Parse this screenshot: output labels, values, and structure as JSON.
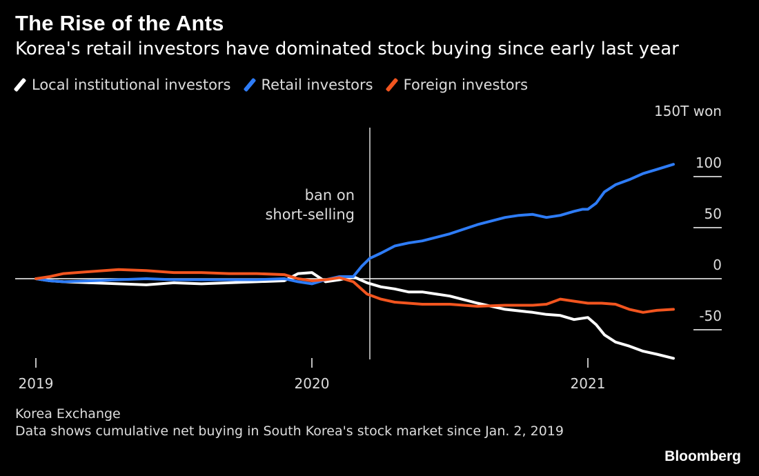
{
  "title": "The Rise of the Ants",
  "subtitle": "Korea's retail investors have dominated stock buying since early last year",
  "source": "Korea Exchange",
  "note": "Data shows cumulative net buying in South Korea's stock market since Jan. 2, 2019",
  "brand": "Bloomberg",
  "colors": {
    "background": "#000000",
    "institutional": "#ffffff",
    "retail": "#2e7cf6",
    "foreign": "#f2551f",
    "axis": "#ffffff",
    "annotation_line": "#ffffff"
  },
  "chart_data": {
    "type": "line",
    "title": "The Rise of the Ants",
    "subtitle": "Korea's retail investors have dominated stock buying since early last year",
    "ylabel_unit": "150T won",
    "ylim": [
      -80,
      150
    ],
    "yticks": [
      {
        "value": 150,
        "label": "150T won"
      },
      {
        "value": 100,
        "label": "100"
      },
      {
        "value": 50,
        "label": "50"
      },
      {
        "value": 0,
        "label": "0"
      },
      {
        "value": -50,
        "label": "-50"
      }
    ],
    "x_range": [
      2019.0,
      2021.5
    ],
    "xticks": [
      {
        "value": 2019.0,
        "label": "2019"
      },
      {
        "value": 2020.0,
        "label": "2020"
      },
      {
        "value": 2021.0,
        "label": "2021"
      }
    ],
    "legend_position": "top-left",
    "grid": false,
    "annotation": {
      "x": 2020.21,
      "label_lines": [
        "ban on",
        "short-selling"
      ]
    },
    "series": [
      {
        "name": "Local institutional investors",
        "color": "#ffffff",
        "x": [
          2019.0,
          2019.05,
          2019.1,
          2019.2,
          2019.3,
          2019.4,
          2019.5,
          2019.6,
          2019.7,
          2019.8,
          2019.9,
          2019.95,
          2020.0,
          2020.05,
          2020.1,
          2020.15,
          2020.2,
          2020.25,
          2020.3,
          2020.35,
          2020.4,
          2020.5,
          2020.6,
          2020.7,
          2020.8,
          2020.85,
          2020.9,
          2020.95,
          2021.0,
          2021.03,
          2021.06,
          2021.1,
          2021.15,
          2021.2,
          2021.25,
          2021.31
        ],
        "y": [
          0,
          -2,
          -3,
          -4,
          -5,
          -6,
          -4,
          -5,
          -4,
          -3,
          -2,
          5,
          6,
          -3,
          -1,
          2,
          -4,
          -8,
          -10,
          -13,
          -13,
          -17,
          -24,
          -30,
          -33,
          -35,
          -36,
          -40,
          -38,
          -45,
          -55,
          -62,
          -66,
          -71,
          -74,
          -78
        ]
      },
      {
        "name": "Retail investors",
        "color": "#2e7cf6",
        "x": [
          2019.0,
          2019.05,
          2019.1,
          2019.2,
          2019.3,
          2019.4,
          2019.5,
          2019.6,
          2019.7,
          2019.8,
          2019.9,
          2019.95,
          2020.0,
          2020.05,
          2020.1,
          2020.15,
          2020.18,
          2020.21,
          2020.25,
          2020.3,
          2020.35,
          2020.4,
          2020.5,
          2020.6,
          2020.7,
          2020.75,
          2020.8,
          2020.85,
          2020.9,
          2020.95,
          2020.98,
          2021.0,
          2021.03,
          2021.06,
          2021.1,
          2021.15,
          2021.2,
          2021.25,
          2021.31
        ],
        "y": [
          0,
          -2,
          -3,
          -2,
          -1,
          0,
          -1,
          -1,
          -1,
          -1,
          0,
          -3,
          -5,
          -1,
          2,
          2,
          12,
          20,
          25,
          32,
          35,
          37,
          44,
          53,
          60,
          62,
          63,
          60,
          62,
          66,
          68,
          68,
          74,
          85,
          92,
          97,
          103,
          107,
          112
        ]
      },
      {
        "name": "Foreign investors",
        "color": "#f2551f",
        "x": [
          2019.0,
          2019.05,
          2019.1,
          2019.2,
          2019.3,
          2019.4,
          2019.5,
          2019.6,
          2019.7,
          2019.8,
          2019.9,
          2019.95,
          2020.0,
          2020.05,
          2020.1,
          2020.15,
          2020.2,
          2020.25,
          2020.3,
          2020.4,
          2020.5,
          2020.6,
          2020.7,
          2020.8,
          2020.85,
          2020.9,
          2020.95,
          2021.0,
          2021.05,
          2021.1,
          2021.15,
          2021.2,
          2021.25,
          2021.31
        ],
        "y": [
          0,
          2,
          5,
          7,
          9,
          8,
          6,
          6,
          5,
          5,
          4,
          0,
          -2,
          -1,
          1,
          -3,
          -15,
          -20,
          -23,
          -25,
          -25,
          -27,
          -26,
          -26,
          -25,
          -20,
          -22,
          -24,
          -24,
          -25,
          -30,
          -33,
          -31,
          -30
        ]
      }
    ]
  }
}
